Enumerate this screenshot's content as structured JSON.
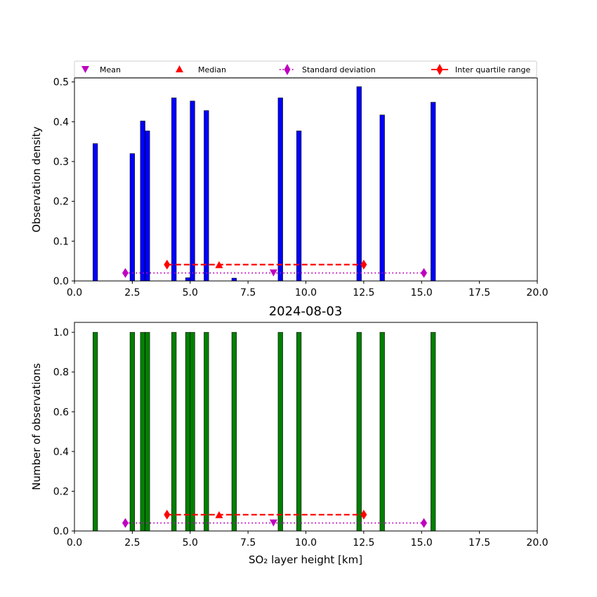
{
  "chart_data": [
    {
      "type": "bar",
      "title": "",
      "xlabel": "",
      "ylabel": "Observation density",
      "xlim": [
        0,
        20
      ],
      "ylim": [
        0,
        0.51
      ],
      "xticks": [
        "0.0",
        "2.5",
        "5.0",
        "7.5",
        "10.0",
        "12.5",
        "15.0",
        "17.5",
        "20.0"
      ],
      "yticks": [
        "0.0",
        "0.1",
        "0.2",
        "0.3",
        "0.4",
        "0.5"
      ],
      "bar_color": "#0000ff",
      "bar_width_km": 0.2,
      "x": [
        0.9,
        2.5,
        2.95,
        3.15,
        4.3,
        4.9,
        5.1,
        5.7,
        6.9,
        8.9,
        9.7,
        12.3,
        13.3,
        15.5
      ],
      "values": [
        0.345,
        0.32,
        0.402,
        0.377,
        0.46,
        0.008,
        0.452,
        0.428,
        0.007,
        0.46,
        0.377,
        0.488,
        0.417,
        0.449
      ],
      "stats": {
        "mean": {
          "x": 8.6,
          "y": 0.02
        },
        "median": {
          "x": 6.25,
          "y": 0.041
        },
        "std_range": {
          "x": [
            2.2,
            15.1
          ],
          "y": 0.02
        },
        "iqr_range": {
          "x": [
            4.0,
            12.5
          ],
          "y": 0.041
        }
      },
      "legend": {
        "placement": "top",
        "entries": [
          "Mean",
          "Median",
          "Standard deviation",
          "Inter quartile range"
        ]
      }
    },
    {
      "type": "bar",
      "title": "2024-08-03",
      "xlabel": "SO₂ layer height [km]",
      "ylabel": "Number of observations",
      "xlim": [
        0,
        20
      ],
      "ylim": [
        0,
        1.05
      ],
      "xticks": [
        "0.0",
        "2.5",
        "5.0",
        "7.5",
        "10.0",
        "12.5",
        "15.0",
        "17.5",
        "20.0"
      ],
      "yticks": [
        "0.0",
        "0.2",
        "0.4",
        "0.6",
        "0.8",
        "1.0"
      ],
      "bar_color": "#008000",
      "bar_width_km": 0.2,
      "x": [
        0.9,
        2.5,
        2.95,
        3.15,
        4.3,
        4.9,
        5.1,
        5.7,
        6.9,
        8.9,
        9.7,
        12.3,
        13.3,
        15.5
      ],
      "values": [
        1,
        1,
        1,
        1,
        1,
        1,
        1,
        1,
        1,
        1,
        1,
        1,
        1,
        1
      ],
      "stats": {
        "mean": {
          "x": 8.6,
          "y": 0.04
        },
        "median": {
          "x": 6.25,
          "y": 0.082
        },
        "std_range": {
          "x": [
            2.2,
            15.1
          ],
          "y": 0.04
        },
        "iqr_range": {
          "x": [
            4.0,
            12.5
          ],
          "y": 0.082
        }
      }
    }
  ],
  "colors": {
    "mean": "#bf00bf",
    "median": "#ff0000",
    "std": "#bf00bf",
    "iqr": "#ff0000"
  }
}
